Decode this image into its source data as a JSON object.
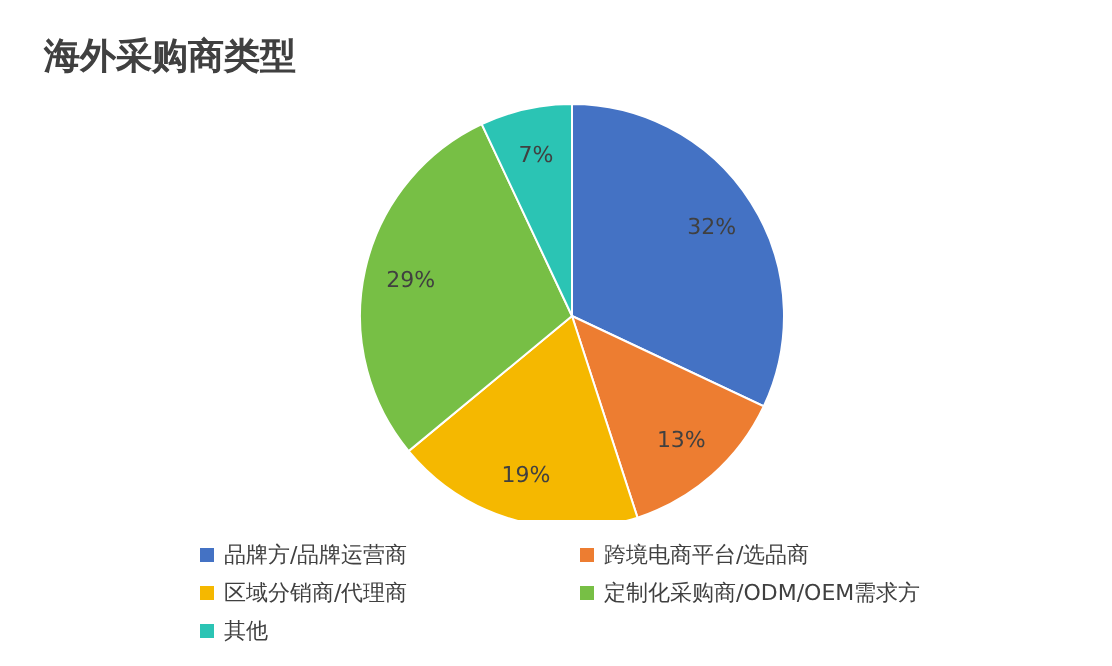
{
  "chart_data": {
    "type": "pie",
    "title": "海外采购商类型",
    "categories": [
      "品牌方/品牌运营商",
      "跨境电商平台/选品商",
      "区域分销商/代理商",
      "定制化采购商/ODM/OEM需求方",
      "其他"
    ],
    "values": [
      32,
      13,
      19,
      29,
      7
    ],
    "value_labels": [
      "32%",
      "13%",
      "19%",
      "29%",
      "7%"
    ],
    "colors": [
      "#4472c4",
      "#ed7d31",
      "#f5b800",
      "#77bf45",
      "#2bc4b4"
    ],
    "legend": "bottom"
  }
}
